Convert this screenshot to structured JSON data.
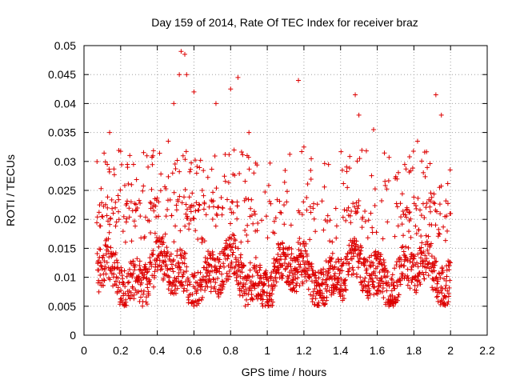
{
  "chart_data": {
    "type": "scatter",
    "title": "Day 159 of 2014, Rate Of TEC Index for receiver braz",
    "xlabel": "GPS time / hours",
    "ylabel": "ROTI / TECUs",
    "xlim": [
      0,
      2.2
    ],
    "ylim": [
      0,
      0.05
    ],
    "xticks": [
      "0",
      "0.2",
      "0.4",
      "0.6",
      "0.8",
      "1",
      "1.2",
      "1.4",
      "1.6",
      "1.8",
      "2",
      "2.2"
    ],
    "yticks": [
      "0",
      "0.005",
      "0.01",
      "0.015",
      "0.02",
      "0.025",
      "0.03",
      "0.035",
      "0.04",
      "0.045",
      "0.05"
    ],
    "grid": true,
    "marker": "+",
    "series": [
      {
        "name": "ROTI",
        "color": "#dd0000",
        "x_start": 0.07,
        "x_end": 2.0,
        "generation": "dense low band 0.005-0.016 with many intermittent spikes up to ~0.049; values estimated from visual density"
      }
    ],
    "peaks": [
      {
        "x": 0.53,
        "y": 0.049
      },
      {
        "x": 0.55,
        "y": 0.0485
      },
      {
        "x": 0.52,
        "y": 0.045
      },
      {
        "x": 0.56,
        "y": 0.045
      },
      {
        "x": 0.84,
        "y": 0.0445
      },
      {
        "x": 1.17,
        "y": 0.044
      },
      {
        "x": 0.8,
        "y": 0.0425
      },
      {
        "x": 1.48,
        "y": 0.0415
      },
      {
        "x": 1.92,
        "y": 0.0415
      },
      {
        "x": 0.49,
        "y": 0.04
      },
      {
        "x": 0.72,
        "y": 0.04
      },
      {
        "x": 1.5,
        "y": 0.038
      },
      {
        "x": 1.95,
        "y": 0.038
      },
      {
        "x": 0.6,
        "y": 0.042
      },
      {
        "x": 0.14,
        "y": 0.035
      },
      {
        "x": 0.9,
        "y": 0.035
      },
      {
        "x": 1.58,
        "y": 0.0355
      },
      {
        "x": 1.82,
        "y": 0.0335
      },
      {
        "x": 0.46,
        "y": 0.0335
      },
      {
        "x": 1.2,
        "y": 0.0325
      }
    ]
  }
}
